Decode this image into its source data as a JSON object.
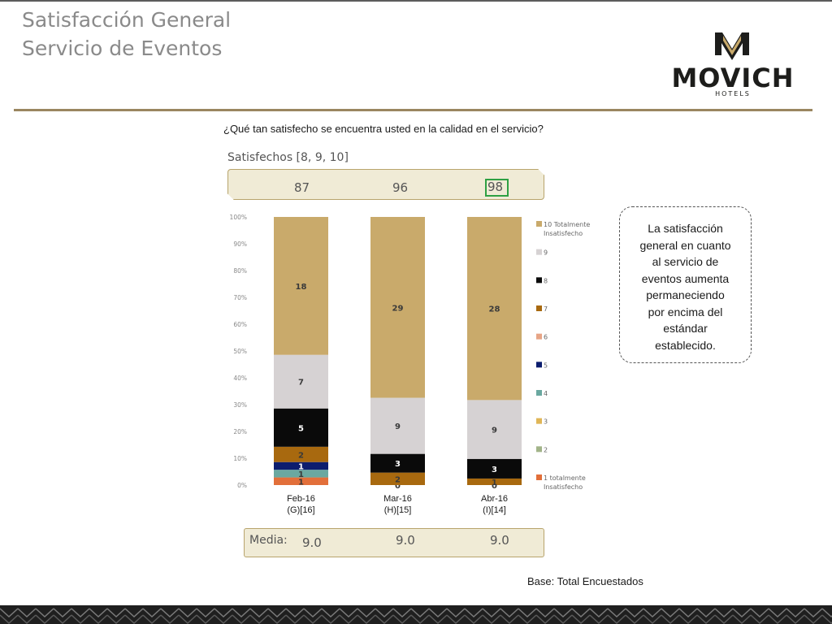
{
  "header": {
    "title_line1": "Satisfacción General",
    "title_line2": "Servicio de Eventos"
  },
  "logo": {
    "name": "MOVICH",
    "sub": "HOTELS"
  },
  "question": "¿Qué tan satisfecho se encuentra usted en la calidad en el servicio?",
  "satisfied": {
    "label": "Satisfechos [8, 9, 10]",
    "values": [
      "87",
      "96",
      "98"
    ]
  },
  "callout": {
    "lines": [
      "La satisfacción",
      "general en cuanto",
      "al servicio de",
      "eventos aumenta",
      "permaneciendo",
      "por encima del",
      "estándar",
      "establecido."
    ]
  },
  "media": {
    "label": "Media:",
    "values": [
      "9.0",
      "9.0",
      "9.0"
    ]
  },
  "base_note": "Base: Total Encuestados",
  "colors": {
    "c10": "#c9aa6b",
    "c9": "#d6d2d3",
    "c8": "#0a0a0a",
    "c7": "#a8690f",
    "c6": "#e7a586",
    "c5": "#0c1d6e",
    "c4": "#6aa8a0",
    "c3": "#e0b657",
    "c2": "#a2b489",
    "c1": "#e26f3a",
    "gold": "#9a8660",
    "highlight": "#2ea043"
  },
  "chart_data": {
    "type": "bar",
    "stacked": true,
    "normalized_percent": true,
    "categories": [
      [
        "Feb-16",
        "(G)[16]"
      ],
      [
        "Mar-16",
        "(H)[15]"
      ],
      [
        "Abr-16",
        "(I)[14]"
      ]
    ],
    "y_ticks": [
      "0%",
      "10%",
      "20%",
      "30%",
      "40%",
      "50%",
      "60%",
      "70%",
      "80%",
      "90%",
      "100%"
    ],
    "ylim": [
      0,
      100
    ],
    "legend_position": "right",
    "series": [
      {
        "name": "1 totalmente Insatisfecho",
        "values": [
          1,
          0,
          0
        ],
        "labels": [
          "1",
          "0",
          "0"
        ]
      },
      {
        "name": "2",
        "values": [
          0,
          0,
          0
        ],
        "labels": [
          "",
          "",
          ""
        ]
      },
      {
        "name": "3",
        "values": [
          0,
          0,
          0
        ],
        "labels": [
          "",
          "",
          ""
        ]
      },
      {
        "name": "4",
        "values": [
          1,
          0,
          0
        ],
        "labels": [
          "1",
          "",
          ""
        ]
      },
      {
        "name": "5",
        "values": [
          1,
          0,
          0
        ],
        "labels": [
          "1",
          "",
          ""
        ]
      },
      {
        "name": "6",
        "values": [
          0,
          0,
          0
        ],
        "labels": [
          "",
          "",
          ""
        ]
      },
      {
        "name": "7",
        "values": [
          2,
          2,
          1
        ],
        "labels": [
          "2",
          "2",
          "1"
        ]
      },
      {
        "name": "8",
        "values": [
          5,
          3,
          3
        ],
        "labels": [
          "5",
          "3",
          "3"
        ]
      },
      {
        "name": "9",
        "values": [
          7,
          9,
          9
        ],
        "labels": [
          "7",
          "9",
          "9"
        ]
      },
      {
        "name": "10 Totalmente Insatisfecho",
        "values": [
          18,
          29,
          28
        ],
        "labels": [
          "18",
          "29",
          "28"
        ]
      }
    ]
  }
}
